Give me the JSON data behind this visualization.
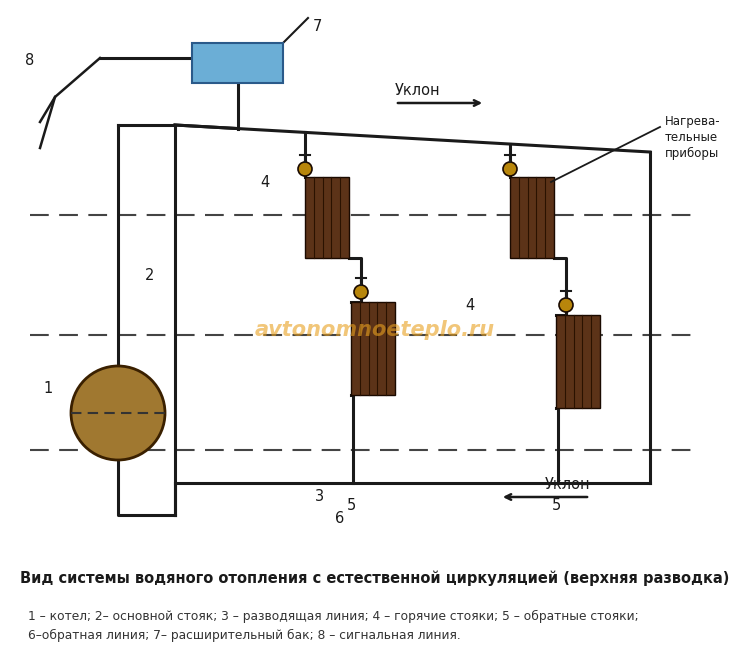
{
  "bg_color": "#ffffff",
  "line_color": "#1a1a1a",
  "radiator_color": "#5c3318",
  "boiler_color": "#a07830",
  "tank_color": "#6baed6",
  "valve_color": "#b8860b",
  "watermark_color": "#e8a020",
  "title": "Вид системы водяного отопления с естественной циркуляцией (верхняя разводка)",
  "legend": "1 – котел; 2– основной стояк; 3 – разводящая линия; 4 – горячие стояки; 5 – обратные стояки;\n6–обратная линия; 7– расширительный бак; 8 – сигнальная линия.",
  "uklон_right": "Уклон",
  "uklон_left": "Уклон",
  "nagreva_label": "Нагрева-\nтельные\nприборы"
}
